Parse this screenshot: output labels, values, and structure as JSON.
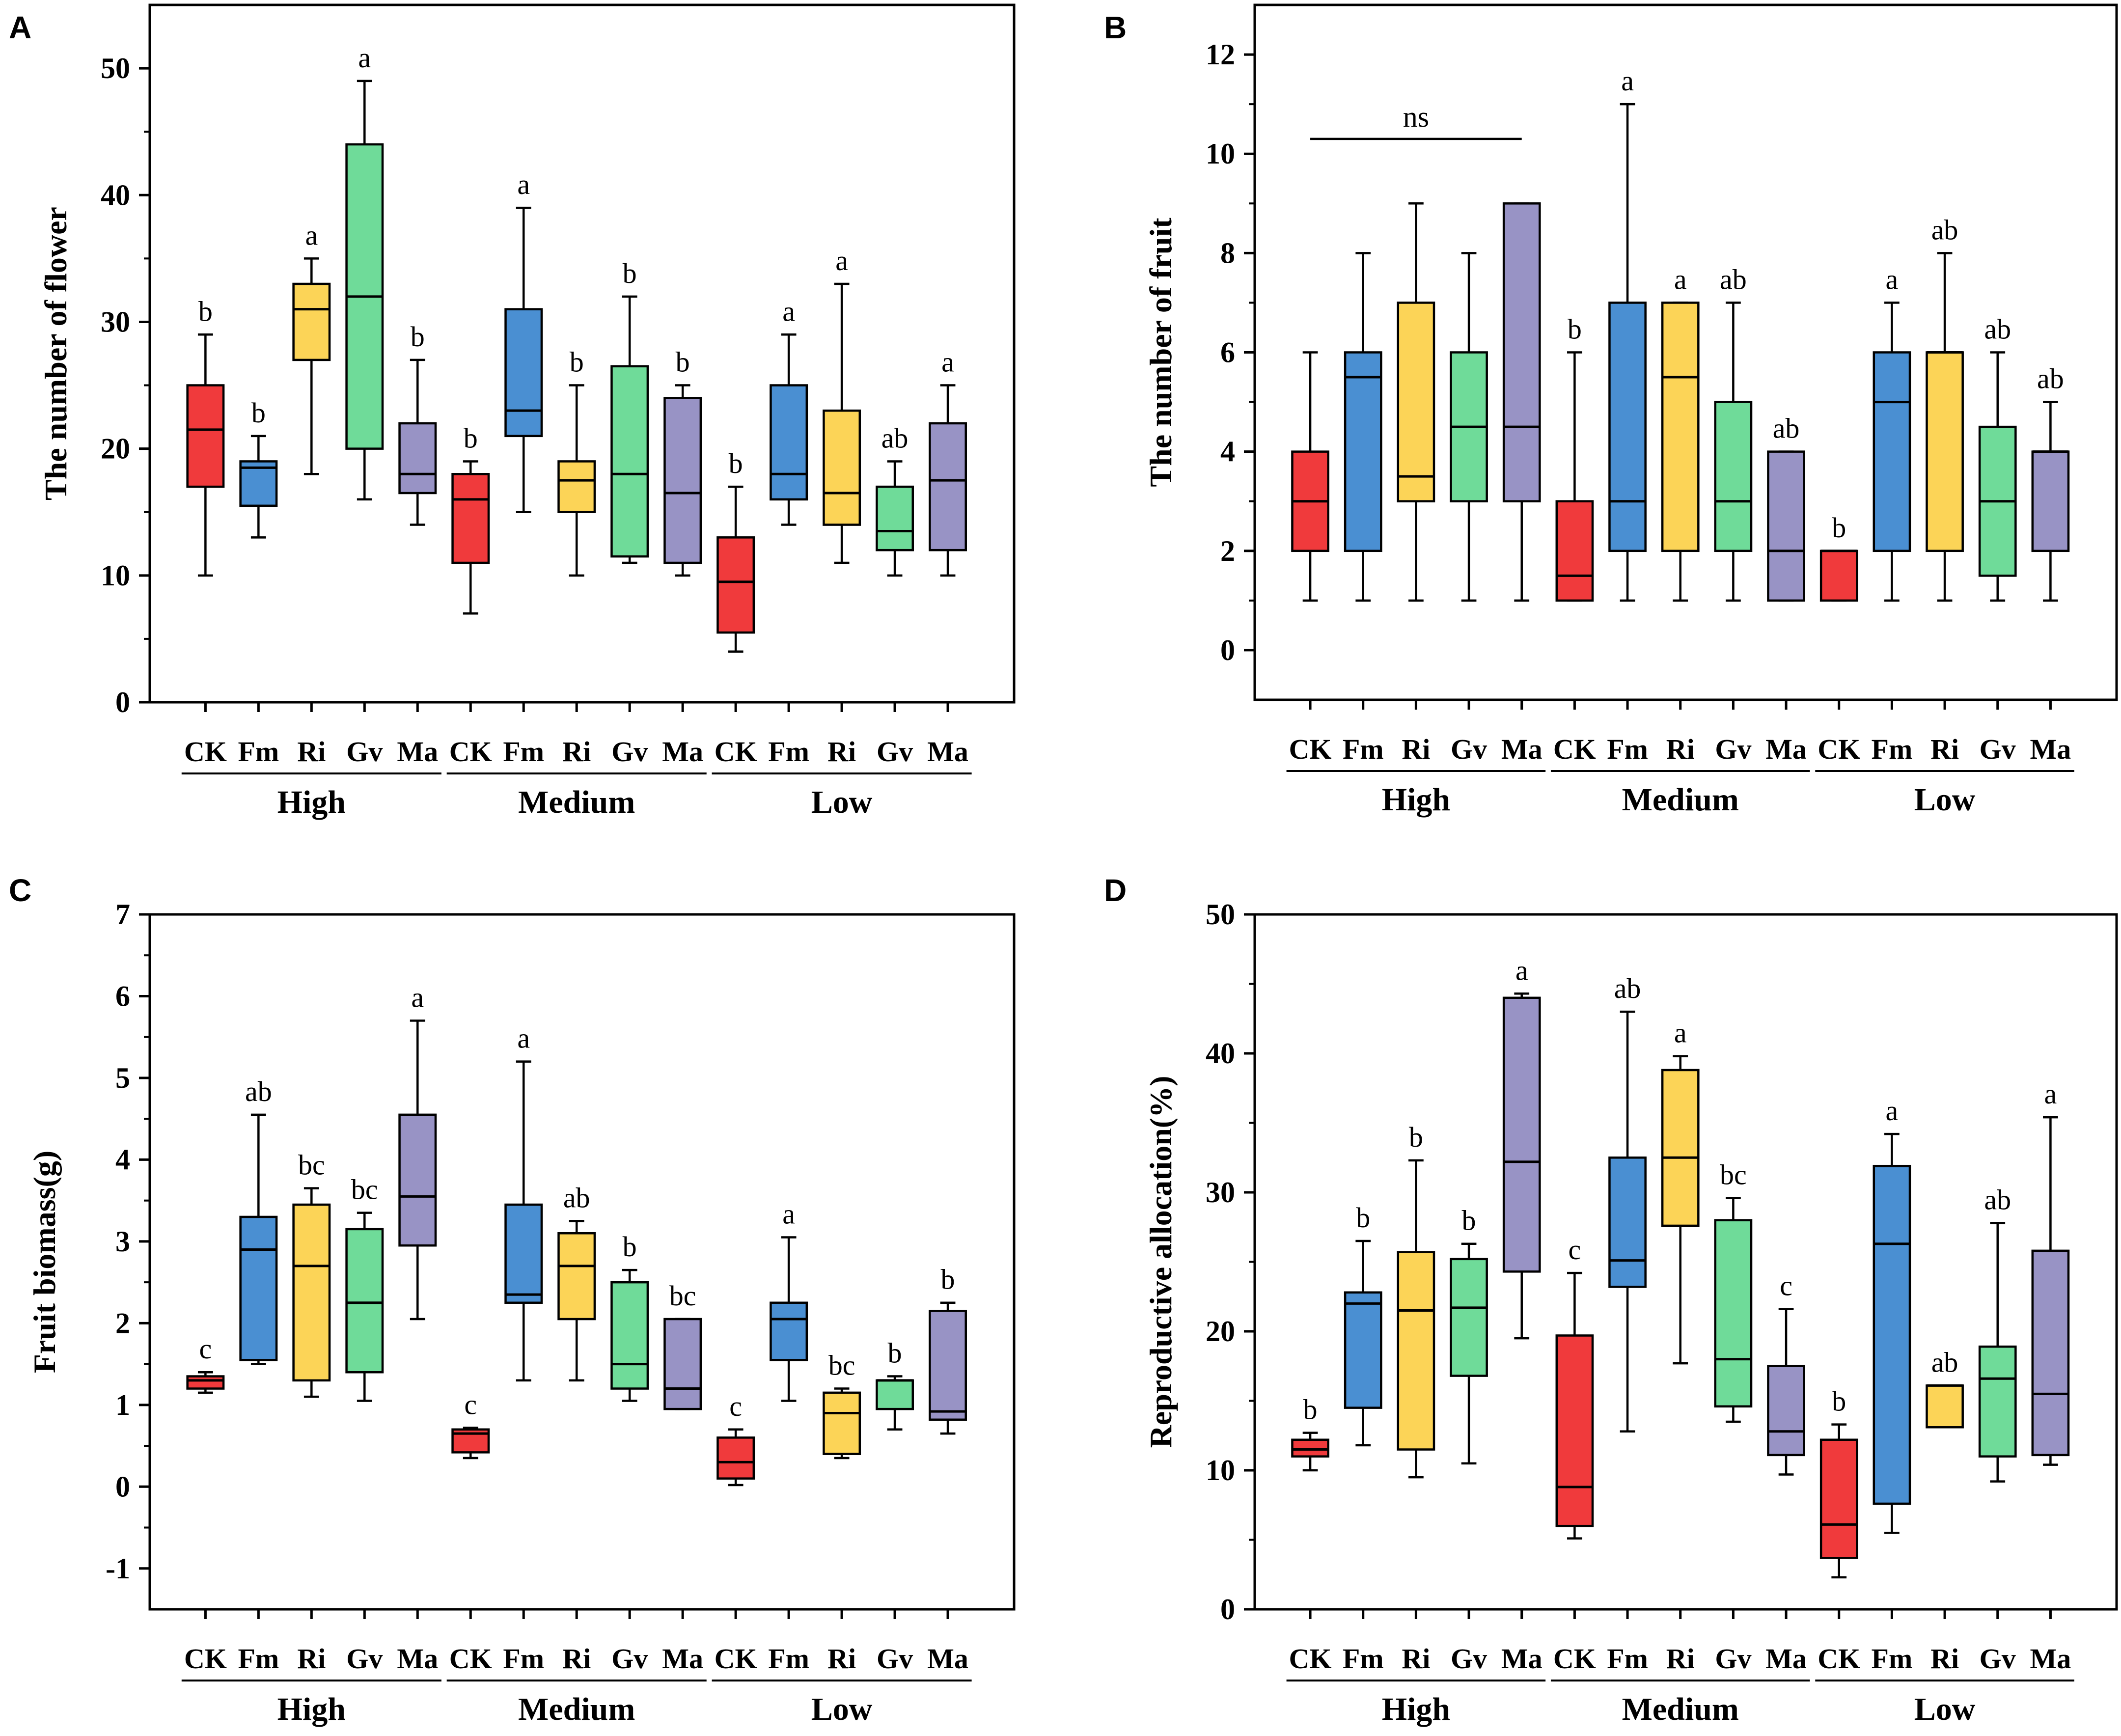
{
  "colors": {
    "CK": "#f03a3c",
    "Fm": "#4a8fd2",
    "Ri": "#fcd457",
    "Gv": "#6fdb99",
    "Ma": "#9893c5",
    "line": "#000000"
  },
  "chart_data": [
    {
      "panel": "A",
      "type": "box",
      "ylabel": "The number of flower",
      "ylim": [
        0,
        55
      ],
      "yticks": [
        0,
        10,
        20,
        30,
        40,
        50
      ],
      "treatments": [
        "CK",
        "Fm",
        "Ri",
        "Gv",
        "Ma"
      ],
      "groups": [
        "High",
        "Medium",
        "Low"
      ],
      "annotations": [],
      "boxes": [
        {
          "group": "High",
          "treatment": "CK",
          "min": 10,
          "q1": 17,
          "median": 21.5,
          "q3": 25,
          "max": 29,
          "letter": "b"
        },
        {
          "group": "High",
          "treatment": "Fm",
          "min": 13,
          "q1": 15.5,
          "median": 18.5,
          "q3": 19,
          "max": 21,
          "letter": "b"
        },
        {
          "group": "High",
          "treatment": "Ri",
          "min": 18,
          "q1": 27,
          "median": 31,
          "q3": 33,
          "max": 35,
          "letter": "a"
        },
        {
          "group": "High",
          "treatment": "Gv",
          "min": 16,
          "q1": 20,
          "median": 32,
          "q3": 44,
          "max": 49,
          "letter": "a"
        },
        {
          "group": "High",
          "treatment": "Ma",
          "min": 14,
          "q1": 16.5,
          "median": 18,
          "q3": 22,
          "max": 27,
          "letter": "b"
        },
        {
          "group": "Medium",
          "treatment": "CK",
          "min": 7,
          "q1": 11,
          "median": 16,
          "q3": 18,
          "max": 19,
          "letter": "b"
        },
        {
          "group": "Medium",
          "treatment": "Fm",
          "min": 15,
          "q1": 21,
          "median": 23,
          "q3": 31,
          "max": 39,
          "letter": "a"
        },
        {
          "group": "Medium",
          "treatment": "Ri",
          "min": 10,
          "q1": 15,
          "median": 17.5,
          "q3": 19,
          "max": 25,
          "letter": "b"
        },
        {
          "group": "Medium",
          "treatment": "Gv",
          "min": 11,
          "q1": 11.5,
          "median": 18,
          "q3": 26.5,
          "max": 32,
          "letter": "b"
        },
        {
          "group": "Medium",
          "treatment": "Ma",
          "min": 10,
          "q1": 11,
          "median": 16.5,
          "q3": 24,
          "max": 25,
          "letter": "b"
        },
        {
          "group": "Low",
          "treatment": "CK",
          "min": 4,
          "q1": 5.5,
          "median": 9.5,
          "q3": 13,
          "max": 17,
          "letter": "b"
        },
        {
          "group": "Low",
          "treatment": "Fm",
          "min": 14,
          "q1": 16,
          "median": 18,
          "q3": 25,
          "max": 29,
          "letter": "a"
        },
        {
          "group": "Low",
          "treatment": "Ri",
          "min": 11,
          "q1": 14,
          "median": 16.5,
          "q3": 23,
          "max": 33,
          "letter": "a"
        },
        {
          "group": "Low",
          "treatment": "Gv",
          "min": 10,
          "q1": 12,
          "median": 13.5,
          "q3": 17,
          "max": 19,
          "letter": "ab"
        },
        {
          "group": "Low",
          "treatment": "Ma",
          "min": 10,
          "q1": 12,
          "median": 17.5,
          "q3": 22,
          "max": 25,
          "letter": "a"
        }
      ]
    },
    {
      "panel": "B",
      "type": "box",
      "ylabel": "The number of fruit",
      "ylim": [
        -1,
        13
      ],
      "yticks": [
        0,
        2,
        4,
        6,
        8,
        10,
        12
      ],
      "treatments": [
        "CK",
        "Fm",
        "Ri",
        "Gv",
        "Ma"
      ],
      "groups": [
        "High",
        "Medium",
        "Low"
      ],
      "annotations": [
        {
          "text": "ns",
          "from_group": "High",
          "from": "CK",
          "to": "Ma",
          "y": 10.3
        }
      ],
      "boxes": [
        {
          "group": "High",
          "treatment": "CK",
          "min": 1,
          "q1": 2,
          "median": 3,
          "q3": 4,
          "max": 6,
          "letter": ""
        },
        {
          "group": "High",
          "treatment": "Fm",
          "min": 1,
          "q1": 2,
          "median": 5.5,
          "q3": 6,
          "max": 8,
          "letter": ""
        },
        {
          "group": "High",
          "treatment": "Ri",
          "min": 1,
          "q1": 3,
          "median": 3.5,
          "q3": 7,
          "max": 9,
          "letter": ""
        },
        {
          "group": "High",
          "treatment": "Gv",
          "min": 1,
          "q1": 3,
          "median": 4.5,
          "q3": 6,
          "max": 8,
          "letter": ""
        },
        {
          "group": "High",
          "treatment": "Ma",
          "min": 1,
          "q1": 3,
          "median": 4.5,
          "q3": 9,
          "max": 9,
          "letter": ""
        },
        {
          "group": "Medium",
          "treatment": "CK",
          "min": 1,
          "q1": 1,
          "median": 1.5,
          "q3": 3,
          "max": 6,
          "letter": "b"
        },
        {
          "group": "Medium",
          "treatment": "Fm",
          "min": 1,
          "q1": 2,
          "median": 3,
          "q3": 7,
          "max": 11,
          "letter": "a"
        },
        {
          "group": "Medium",
          "treatment": "Ri",
          "min": 1,
          "q1": 2,
          "median": 5.5,
          "q3": 7,
          "max": 7,
          "letter": "a"
        },
        {
          "group": "Medium",
          "treatment": "Gv",
          "min": 1,
          "q1": 2,
          "median": 3,
          "q3": 5,
          "max": 7,
          "letter": "ab"
        },
        {
          "group": "Medium",
          "treatment": "Ma",
          "min": 1,
          "q1": 1,
          "median": 2,
          "q3": 4,
          "max": 4,
          "letter": "ab"
        },
        {
          "group": "Low",
          "treatment": "CK",
          "min": 1,
          "q1": 1,
          "median": 2,
          "q3": 2,
          "max": 2,
          "letter": "b"
        },
        {
          "group": "Low",
          "treatment": "Fm",
          "min": 1,
          "q1": 2,
          "median": 5,
          "q3": 6,
          "max": 7,
          "letter": "a"
        },
        {
          "group": "Low",
          "treatment": "Ri",
          "min": 1,
          "q1": 2,
          "median": 6,
          "q3": 6,
          "max": 8,
          "letter": "ab"
        },
        {
          "group": "Low",
          "treatment": "Gv",
          "min": 1,
          "q1": 1.5,
          "median": 3,
          "q3": 4.5,
          "max": 6,
          "letter": "ab"
        },
        {
          "group": "Low",
          "treatment": "Ma",
          "min": 1,
          "q1": 2,
          "median": 4,
          "q3": 4,
          "max": 5,
          "letter": "ab"
        }
      ]
    },
    {
      "panel": "C",
      "type": "box",
      "ylabel": "Fruit biomass(g)",
      "ylim": [
        -1.5,
        7
      ],
      "yticks": [
        -1,
        0,
        1,
        2,
        3,
        4,
        5,
        6,
        7
      ],
      "treatments": [
        "CK",
        "Fm",
        "Ri",
        "Gv",
        "Ma"
      ],
      "groups": [
        "High",
        "Medium",
        "Low"
      ],
      "annotations": [],
      "boxes": [
        {
          "group": "High",
          "treatment": "CK",
          "min": 1.15,
          "q1": 1.2,
          "median": 1.3,
          "q3": 1.35,
          "max": 1.4,
          "letter": "c"
        },
        {
          "group": "High",
          "treatment": "Fm",
          "min": 1.5,
          "q1": 1.55,
          "median": 2.9,
          "q3": 3.3,
          "max": 4.55,
          "letter": "ab"
        },
        {
          "group": "High",
          "treatment": "Ri",
          "min": 1.1,
          "q1": 1.3,
          "median": 2.7,
          "q3": 3.45,
          "max": 3.65,
          "letter": "bc"
        },
        {
          "group": "High",
          "treatment": "Gv",
          "min": 1.05,
          "q1": 1.4,
          "median": 2.25,
          "q3": 3.15,
          "max": 3.35,
          "letter": "bc"
        },
        {
          "group": "High",
          "treatment": "Ma",
          "min": 2.05,
          "q1": 2.95,
          "median": 3.55,
          "q3": 4.55,
          "max": 5.7,
          "letter": "a"
        },
        {
          "group": "Medium",
          "treatment": "CK",
          "min": 0.35,
          "q1": 0.42,
          "median": 0.65,
          "q3": 0.7,
          "max": 0.72,
          "letter": "c"
        },
        {
          "group": "Medium",
          "treatment": "Fm",
          "min": 1.3,
          "q1": 2.25,
          "median": 2.35,
          "q3": 3.45,
          "max": 5.2,
          "letter": "a"
        },
        {
          "group": "Medium",
          "treatment": "Ri",
          "min": 1.3,
          "q1": 2.05,
          "median": 2.7,
          "q3": 3.1,
          "max": 3.25,
          "letter": "ab"
        },
        {
          "group": "Medium",
          "treatment": "Gv",
          "min": 1.05,
          "q1": 1.2,
          "median": 1.5,
          "q3": 2.5,
          "max": 2.65,
          "letter": "b"
        },
        {
          "group": "Medium",
          "treatment": "Ma",
          "min": 0.95,
          "q1": 0.95,
          "median": 1.2,
          "q3": 2.05,
          "max": 2.05,
          "letter": "bc"
        },
        {
          "group": "Low",
          "treatment": "CK",
          "min": 0.02,
          "q1": 0.1,
          "median": 0.3,
          "q3": 0.6,
          "max": 0.7,
          "letter": "c"
        },
        {
          "group": "Low",
          "treatment": "Fm",
          "min": 1.05,
          "q1": 1.55,
          "median": 2.05,
          "q3": 2.25,
          "max": 3.05,
          "letter": "a"
        },
        {
          "group": "Low",
          "treatment": "Ri",
          "min": 0.35,
          "q1": 0.4,
          "median": 0.9,
          "q3": 1.15,
          "max": 1.2,
          "letter": "bc"
        },
        {
          "group": "Low",
          "treatment": "Gv",
          "min": 0.7,
          "q1": 0.95,
          "median": 1.3,
          "q3": 1.3,
          "max": 1.35,
          "letter": "b"
        },
        {
          "group": "Low",
          "treatment": "Ma",
          "min": 0.65,
          "q1": 0.82,
          "median": 0.92,
          "q3": 2.15,
          "max": 2.25,
          "letter": "b"
        }
      ]
    },
    {
      "panel": "D",
      "type": "box",
      "ylabel": "Reproductive allocation(%)",
      "ylim": [
        0,
        50
      ],
      "yticks": [
        0,
        10,
        20,
        30,
        40,
        50
      ],
      "treatments": [
        "CK",
        "Fm",
        "Ri",
        "Gv",
        "Ma"
      ],
      "groups": [
        "High",
        "Medium",
        "Low"
      ],
      "annotations": [],
      "boxes": [
        {
          "group": "High",
          "treatment": "CK",
          "min": 10,
          "q1": 11,
          "median": 11.5,
          "q3": 12.2,
          "max": 12.7,
          "letter": "b"
        },
        {
          "group": "High",
          "treatment": "Fm",
          "min": 11.8,
          "q1": 14.5,
          "median": 22,
          "q3": 22.8,
          "max": 26.5,
          "letter": "b"
        },
        {
          "group": "High",
          "treatment": "Ri",
          "min": 9.5,
          "q1": 11.5,
          "median": 21.5,
          "q3": 25.7,
          "max": 32.3,
          "letter": "b"
        },
        {
          "group": "High",
          "treatment": "Gv",
          "min": 10.5,
          "q1": 16.8,
          "median": 21.7,
          "q3": 25.2,
          "max": 26.3,
          "letter": "b"
        },
        {
          "group": "High",
          "treatment": "Ma",
          "min": 19.5,
          "q1": 24.3,
          "median": 32.2,
          "q3": 44,
          "max": 44.3,
          "letter": "a"
        },
        {
          "group": "Medium",
          "treatment": "CK",
          "min": 5.1,
          "q1": 6,
          "median": 8.8,
          "q3": 19.7,
          "max": 24.2,
          "letter": "c"
        },
        {
          "group": "Medium",
          "treatment": "Fm",
          "min": 12.8,
          "q1": 23.2,
          "median": 25.1,
          "q3": 32.5,
          "max": 43,
          "letter": "ab"
        },
        {
          "group": "Medium",
          "treatment": "Ri",
          "min": 17.7,
          "q1": 27.6,
          "median": 32.5,
          "q3": 38.8,
          "max": 39.8,
          "letter": "a"
        },
        {
          "group": "Medium",
          "treatment": "Gv",
          "min": 13.5,
          "q1": 14.6,
          "median": 18,
          "q3": 28,
          "max": 29.6,
          "letter": "bc"
        },
        {
          "group": "Medium",
          "treatment": "Ma",
          "min": 9.7,
          "q1": 11.1,
          "median": 12.8,
          "q3": 17.5,
          "max": 21.6,
          "letter": "c"
        },
        {
          "group": "Low",
          "treatment": "CK",
          "min": 2.3,
          "q1": 3.7,
          "median": 6.1,
          "q3": 12.2,
          "max": 13.3,
          "letter": "b"
        },
        {
          "group": "Low",
          "treatment": "Fm",
          "min": 5.5,
          "q1": 7.6,
          "median": 26.3,
          "q3": 31.9,
          "max": 34.2,
          "letter": "a"
        },
        {
          "group": "Low",
          "treatment": "Ri",
          "min": 13.1,
          "q1": 13.1,
          "median": 16.1,
          "q3": 16.1,
          "max": 16.1,
          "letter": "ab"
        },
        {
          "group": "Low",
          "treatment": "Gv",
          "min": 9.2,
          "q1": 11,
          "median": 16.6,
          "q3": 18.9,
          "max": 27.8,
          "letter": "ab"
        },
        {
          "group": "Low",
          "treatment": "Ma",
          "min": 10.4,
          "q1": 11.1,
          "median": 15.5,
          "q3": 25.8,
          "max": 35.4,
          "letter": "a"
        }
      ]
    }
  ]
}
